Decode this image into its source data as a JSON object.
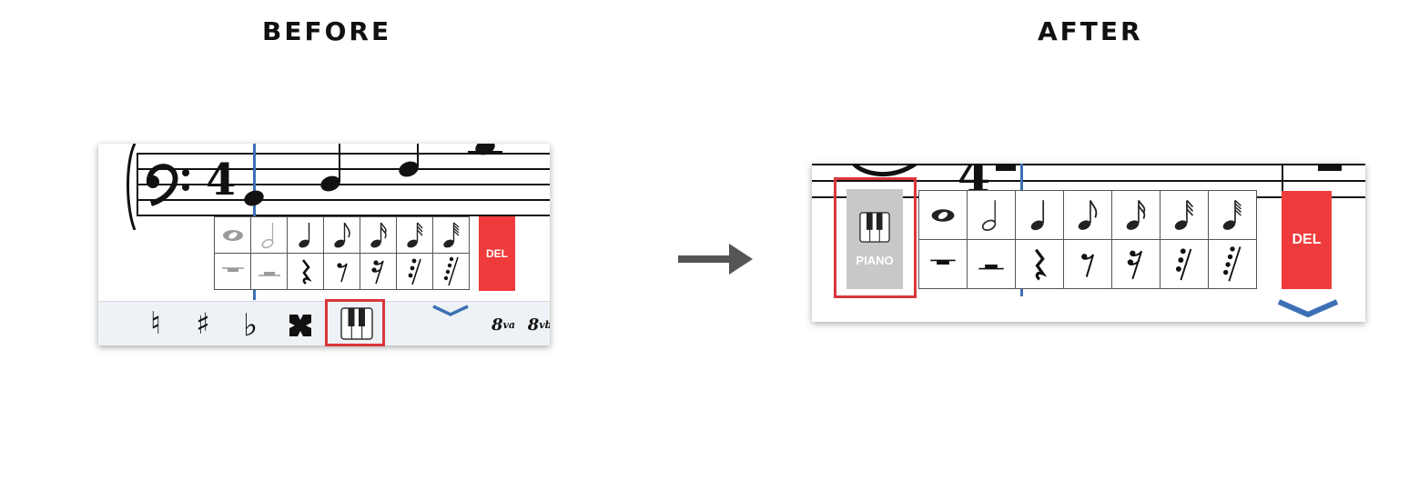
{
  "headings": {
    "before": "BEFORE",
    "after": "AFTER"
  },
  "before": {
    "note_icons": [
      "whole-note-icon",
      "half-note-icon",
      "quarter-note-icon",
      "eighth-note-icon",
      "sixteenth-note-icon",
      "thirty-second-note-icon",
      "sixty-fourth-note-icon"
    ],
    "rest_icons": [
      "whole-rest-icon",
      "half-rest-icon",
      "quarter-rest-icon",
      "eighth-rest-icon",
      "sixteenth-rest-icon",
      "thirty-second-rest-icon",
      "sixty-fourth-rest-icon"
    ],
    "del_label": "DEL",
    "toolbar": {
      "natural": "♮",
      "sharp": "♯",
      "flat": "♭",
      "octave_up_num": "8",
      "octave_up_sup": "va",
      "octave_down_num": "8",
      "octave_down_sup": "vb"
    },
    "time_signature_top": "4",
    "clef_icon": "bass-clef-icon",
    "piano_icon": "piano-keys-icon"
  },
  "after": {
    "del_label": "DEL",
    "piano_label": "PIANO",
    "time_signature_top": "4"
  },
  "colors": {
    "accent_blue": "#3d6fb5",
    "delete_red": "#ef3b3b",
    "highlight_red": "#d9363a",
    "piano_bg": "#c8c8c8",
    "arrow_gray": "#555555"
  }
}
